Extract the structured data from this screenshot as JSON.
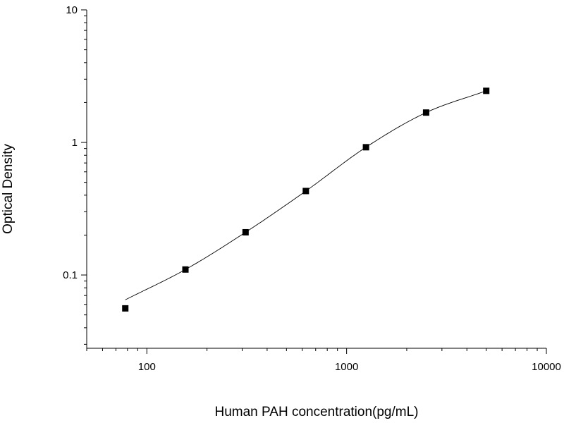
{
  "chart_data": {
    "type": "scatter",
    "title": "",
    "xlabel": "Human PAH concentration(pg/mL)",
    "ylabel": "Optical Density",
    "x_scale": "log",
    "y_scale": "log",
    "xlim": [
      50,
      10000
    ],
    "ylim": [
      0.028,
      10
    ],
    "x_ticks": [
      {
        "value": 100,
        "label": "100"
      },
      {
        "value": 1000,
        "label": "1000"
      },
      {
        "value": 10000,
        "label": "10000"
      }
    ],
    "y_ticks": [
      {
        "value": 0.1,
        "label": "0.1"
      },
      {
        "value": 1,
        "label": "1"
      },
      {
        "value": 10,
        "label": "10"
      }
    ],
    "grid": false,
    "legend": "none",
    "series": [
      {
        "marker": "square",
        "color": "#000000",
        "x": [
          78,
          156,
          312,
          625,
          1250,
          2500,
          5000
        ],
        "y": [
          0.056,
          0.11,
          0.21,
          0.43,
          0.92,
          1.68,
          2.45
        ]
      }
    ],
    "fit_curve": {
      "color": "#000000",
      "x_range": [
        78,
        5000
      ]
    }
  }
}
